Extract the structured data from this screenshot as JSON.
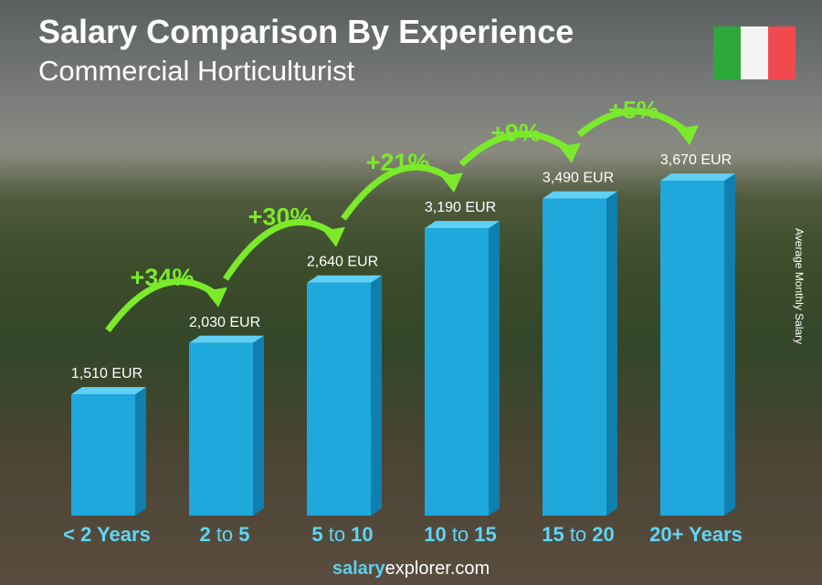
{
  "header": {
    "title": "Salary Comparison By Experience",
    "subtitle": "Commercial Horticulturist"
  },
  "flag": {
    "colors": [
      "#2fa83a",
      "#f4f4f4",
      "#f04a4f"
    ]
  },
  "footer": {
    "brand_bold": "salary",
    "brand_rest": "explorer.com"
  },
  "colors": {
    "bar": "#1ea8dc",
    "bar_side": "#0f7fae",
    "bar_top": "#5fd0f5",
    "increase": "#7bea2a",
    "label": "#5fd6f7"
  },
  "chart_data": {
    "type": "bar",
    "title": "Salary Comparison By Experience",
    "subtitle": "Commercial Horticulturist",
    "ylabel": "Average Monthly Salary",
    "categories": [
      [
        "< 2",
        "Years"
      ],
      [
        "2",
        "to",
        "5"
      ],
      [
        "5",
        "to",
        "10"
      ],
      [
        "10",
        "to",
        "15"
      ],
      [
        "15",
        "to",
        "20"
      ],
      [
        "20+",
        "Years"
      ]
    ],
    "values": [
      1510,
      2030,
      2640,
      3190,
      3490,
      3670
    ],
    "value_labels": [
      "1,510 EUR",
      "2,030 EUR",
      "2,640 EUR",
      "3,190 EUR",
      "3,490 EUR",
      "3,670 EUR"
    ],
    "increases": [
      "+34%",
      "+30%",
      "+21%",
      "+9%",
      "+5%"
    ],
    "unit": "EUR"
  }
}
